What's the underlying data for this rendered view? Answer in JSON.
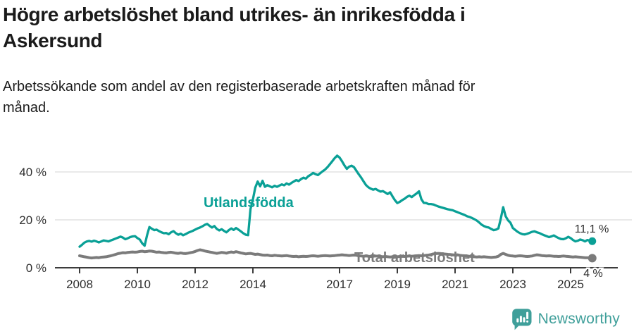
{
  "header": {
    "title_lines": [
      "Högre arbetslöshet bland utrikes- än inrikesfödda i",
      "Askersund"
    ],
    "subtitle_lines": [
      "Arbetssökande som andel av den registerbaserade arbetskraften månad för",
      "månad."
    ]
  },
  "chart_data": {
    "type": "line",
    "title": "Högre arbetslöshet bland utrikes- än inrikesfödda i Askersund",
    "subtitle": "Arbetssökande som andel av den registerbaserade arbetskraften månad för månad.",
    "x_unit": "month",
    "x_start": "2008-01",
    "x_end": "2025-10",
    "x_tick_years": [
      2008,
      2010,
      2012,
      2014,
      2017,
      2019,
      2021,
      2023,
      2025
    ],
    "x_tick_labels": [
      "2008",
      "2010",
      "2012",
      "2014",
      "2017",
      "2019",
      "2021",
      "2023",
      "2025"
    ],
    "y_ticks": [
      0,
      20,
      40
    ],
    "y_tick_labels": [
      "0 %",
      "20 %",
      "40 %"
    ],
    "ylim": [
      0,
      50
    ],
    "grid": "horizontal",
    "legend_position": "inline-labels",
    "colors": {
      "utlandsfodda": "#0aa096",
      "total": "#7b7b7b",
      "grid": "#dcdcdc",
      "axis": "#3c3c3c",
      "value_label": "#2d2d2d"
    },
    "annotations": {
      "utlandsfodda_label": "Utlandsfödda",
      "total_label": "Total arbetslöshet",
      "end_value_utlandsfodda": "11,1 %",
      "end_value_total": "4 %"
    },
    "series": [
      {
        "name": "Total arbetslöshet",
        "color": "#7b7b7b",
        "end_label": "4 %",
        "values": [
          5.0,
          4.8,
          4.6,
          4.4,
          4.2,
          4.1,
          4.2,
          4.3,
          4.2,
          4.4,
          4.5,
          4.6,
          4.8,
          5.0,
          5.3,
          5.6,
          5.9,
          6.1,
          6.3,
          6.2,
          6.4,
          6.5,
          6.6,
          6.5,
          6.6,
          6.8,
          6.9,
          6.7,
          6.8,
          7.0,
          6.9,
          6.7,
          6.5,
          6.6,
          6.4,
          6.3,
          6.2,
          6.4,
          6.5,
          6.3,
          6.1,
          6.0,
          6.2,
          6.0,
          5.9,
          6.1,
          6.3,
          6.5,
          6.8,
          7.2,
          7.5,
          7.3,
          7.0,
          6.8,
          6.6,
          6.4,
          6.2,
          6.0,
          6.2,
          6.4,
          6.3,
          6.1,
          6.4,
          6.6,
          6.4,
          6.7,
          6.5,
          6.2,
          6.0,
          5.8,
          5.9,
          6.0,
          5.8,
          5.6,
          5.7,
          5.5,
          5.3,
          5.2,
          5.3,
          5.1,
          5.0,
          5.2,
          5.1,
          5.0,
          4.9,
          5.0,
          5.1,
          4.9,
          4.8,
          4.7,
          4.8,
          4.6,
          4.7,
          4.8,
          4.7,
          4.8,
          4.9,
          5.0,
          4.9,
          4.8,
          4.9,
          5.0,
          5.1,
          5.0,
          4.9,
          5.0,
          5.1,
          5.2,
          5.3,
          5.4,
          5.3,
          5.2,
          5.1,
          5.2,
          5.3,
          5.2,
          5.0,
          4.9,
          4.8,
          4.9,
          4.8,
          4.7,
          4.8,
          4.9,
          4.8,
          4.7,
          4.6,
          4.7,
          4.6,
          4.5,
          4.6,
          4.7,
          4.6,
          4.7,
          4.8,
          4.7,
          4.8,
          4.9,
          4.8,
          4.9,
          5.0,
          5.1,
          5.0,
          5.1,
          5.2,
          5.3,
          5.5,
          5.8,
          5.9,
          6.0,
          5.9,
          5.8,
          5.7,
          5.6,
          5.5,
          5.4,
          5.3,
          5.4,
          5.2,
          5.1,
          5.0,
          4.9,
          4.8,
          4.7,
          4.6,
          4.5,
          4.6,
          4.5,
          4.6,
          4.5,
          4.4,
          4.3,
          4.4,
          4.5,
          4.8,
          5.6,
          6.0,
          5.6,
          5.2,
          5.0,
          4.9,
          4.8,
          4.9,
          5.0,
          4.9,
          4.8,
          4.7,
          4.8,
          4.9,
          5.2,
          5.4,
          5.3,
          5.1,
          5.0,
          4.9,
          5.0,
          4.9,
          4.8,
          4.8,
          4.7,
          4.8,
          4.9,
          4.8,
          4.7,
          4.6,
          4.5,
          4.6,
          4.5,
          4.4,
          4.3,
          4.2,
          4.2,
          4.1,
          4.0
        ]
      },
      {
        "name": "Utlandsfödda",
        "color": "#0aa096",
        "end_label": "11,1 %",
        "values": [
          8.8,
          9.6,
          10.5,
          11.0,
          11.2,
          10.9,
          11.3,
          11.0,
          10.6,
          11.0,
          11.4,
          11.2,
          11.0,
          11.4,
          11.8,
          12.2,
          12.6,
          13.0,
          12.6,
          11.9,
          12.3,
          12.8,
          13.1,
          13.2,
          12.4,
          11.8,
          10.2,
          9.2,
          13.5,
          17.0,
          16.3,
          15.7,
          15.9,
          15.3,
          14.8,
          14.4,
          14.5,
          14.0,
          14.8,
          15.3,
          14.4,
          13.8,
          14.2,
          13.6,
          14.0,
          14.6,
          15.0,
          15.4,
          15.9,
          16.4,
          16.8,
          17.3,
          17.9,
          18.3,
          17.5,
          16.8,
          17.4,
          16.2,
          15.6,
          16.1,
          15.4,
          14.8,
          15.7,
          16.4,
          15.8,
          16.6,
          15.9,
          15.2,
          14.4,
          13.8,
          13.6,
          24.5,
          28.5,
          33.5,
          36.0,
          34.0,
          36.3,
          33.8,
          34.5,
          34.0,
          33.6,
          34.2,
          33.8,
          34.3,
          34.8,
          34.4,
          35.2,
          34.7,
          35.4,
          36.0,
          36.6,
          36.2,
          37.0,
          37.6,
          37.2,
          38.2,
          38.8,
          39.6,
          39.1,
          38.7,
          39.5,
          40.3,
          41.0,
          42.0,
          43.2,
          44.5,
          45.8,
          46.8,
          46.0,
          44.5,
          42.8,
          41.3,
          42.2,
          42.6,
          42.0,
          40.5,
          39.0,
          37.6,
          36.0,
          34.5,
          33.6,
          33.0,
          32.6,
          32.9,
          32.3,
          31.8,
          32.0,
          31.4,
          30.8,
          31.5,
          29.8,
          28.2,
          27.0,
          27.5,
          28.2,
          28.8,
          29.6,
          30.1,
          29.5,
          30.3,
          31.0,
          31.9,
          28.6,
          27.1,
          27.0,
          26.6,
          26.6,
          26.4,
          26.0,
          25.6,
          25.3,
          25.0,
          24.7,
          24.4,
          24.2,
          24.0,
          23.6,
          23.2,
          22.8,
          22.4,
          22.0,
          21.5,
          21.2,
          20.8,
          20.3,
          19.7,
          18.9,
          18.0,
          17.4,
          17.0,
          16.8,
          16.2,
          15.7,
          15.9,
          16.4,
          20.5,
          25.3,
          21.5,
          19.8,
          18.8,
          16.6,
          15.8,
          15.0,
          14.4,
          14.0,
          13.9,
          14.2,
          14.6,
          15.0,
          15.2,
          14.8,
          14.5,
          14.0,
          13.6,
          13.2,
          12.8,
          13.1,
          13.5,
          12.9,
          12.4,
          12.0,
          11.9,
          12.3,
          12.9,
          12.4,
          11.6,
          11.0,
          11.3,
          11.8,
          11.5,
          11.0,
          11.6,
          11.3,
          11.1
        ]
      }
    ]
  },
  "footer": {
    "brand": "Newsworthy",
    "brand_color": "#3f9f9a"
  }
}
